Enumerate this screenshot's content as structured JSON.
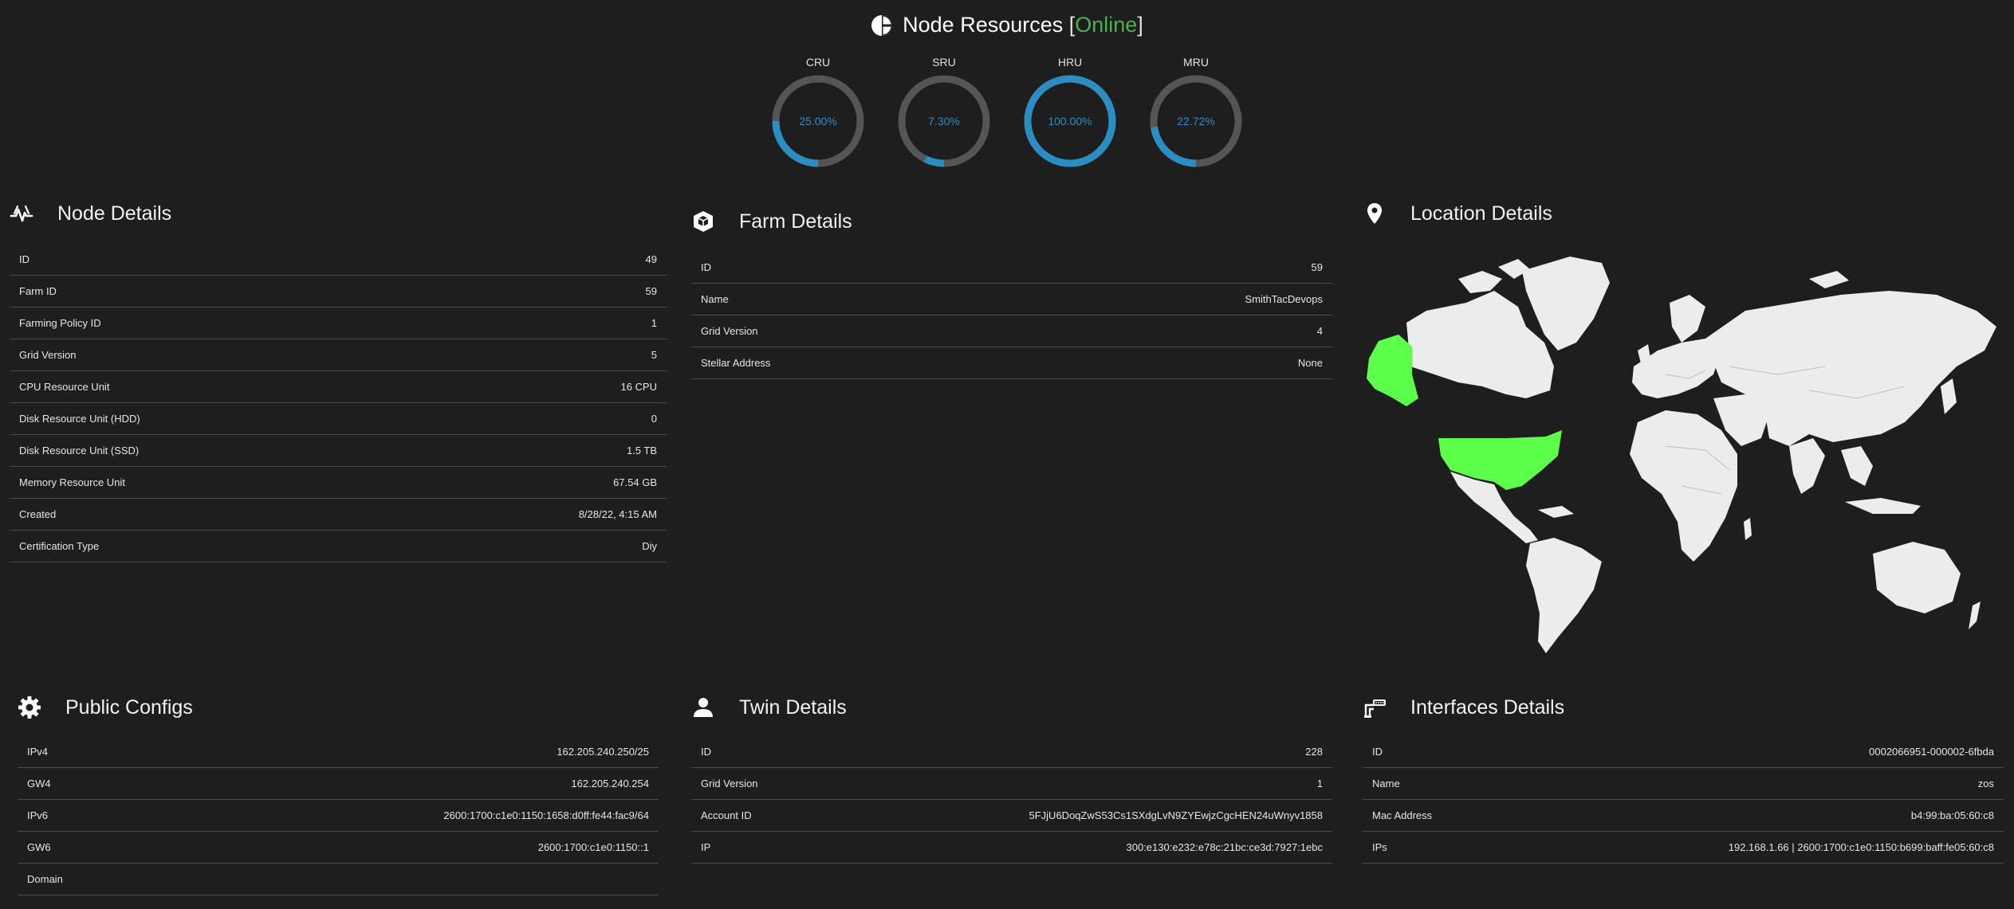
{
  "header": {
    "title": "Node Resources",
    "bracket_open": "[",
    "status": "Online",
    "bracket_close": "]"
  },
  "gauges": [
    {
      "label": "CRU",
      "text": "25.00%",
      "value": 25.0
    },
    {
      "label": "SRU",
      "text": "7.30%",
      "value": 7.3
    },
    {
      "label": "HRU",
      "text": "100.00%",
      "value": 100.0
    },
    {
      "label": "MRU",
      "text": "22.72%",
      "value": 22.72
    }
  ],
  "colors": {
    "accent": "#2b8ec2",
    "track": "#555555",
    "online": "#4caf50",
    "highlight_country": "#5cff4a",
    "land": "#ececec"
  },
  "node_details": {
    "title": "Node Details",
    "icon": "activity-icon",
    "rows": [
      {
        "label": "ID",
        "value": "49"
      },
      {
        "label": "Farm ID",
        "value": "59"
      },
      {
        "label": "Farming Policy ID",
        "value": "1"
      },
      {
        "label": "Grid Version",
        "value": "5"
      },
      {
        "label": "CPU Resource Unit",
        "value": "16 CPU"
      },
      {
        "label": "Disk Resource Unit (HDD)",
        "value": "0"
      },
      {
        "label": "Disk Resource Unit (SSD)",
        "value": "1.5 TB"
      },
      {
        "label": "Memory Resource Unit",
        "value": "67.54 GB"
      },
      {
        "label": "Created",
        "value": "8/28/22, 4:15 AM"
      },
      {
        "label": "Certification Type",
        "value": "Diy"
      }
    ]
  },
  "farm_details": {
    "title": "Farm Details",
    "icon": "cube-icon",
    "rows": [
      {
        "label": "ID",
        "value": "59"
      },
      {
        "label": "Name",
        "value": "SmithTacDevops"
      },
      {
        "label": "Grid Version",
        "value": "4"
      },
      {
        "label": "Stellar Address",
        "value": "None"
      }
    ]
  },
  "location_details": {
    "title": "Location Details",
    "icon": "map-pin-icon"
  },
  "public_configs": {
    "title": "Public Configs",
    "icon": "gear-icon",
    "rows": [
      {
        "label": "IPv4",
        "value": "162.205.240.250/25"
      },
      {
        "label": "GW4",
        "value": "162.205.240.254"
      },
      {
        "label": "IPv6",
        "value": "2600:1700:c1e0:1150:1658:d0ff:fe44:fac9/64"
      },
      {
        "label": "GW6",
        "value": "2600:1700:c1e0:1150::1"
      },
      {
        "label": "Domain",
        "value": ""
      }
    ]
  },
  "twin_details": {
    "title": "Twin Details",
    "icon": "user-icon",
    "rows": [
      {
        "label": "ID",
        "value": "228"
      },
      {
        "label": "Grid Version",
        "value": "1"
      },
      {
        "label": "Account ID",
        "value": "5FJjU6DoqZwS53Cs1SXdgLvN9ZYEwjzCgcHEN24uWnyv1858"
      },
      {
        "label": "IP",
        "value": "300:e130:e232:e78c:21bc:ce3d:7927:1ebc"
      }
    ]
  },
  "interfaces_details": {
    "title": "Interfaces Details",
    "icon": "network-interface-icon",
    "rows": [
      {
        "label": "ID",
        "value": "0002066951-000002-6fbda"
      },
      {
        "label": "Name",
        "value": "zos"
      },
      {
        "label": "Mac Address",
        "value": "b4:99:ba:05:60:c8"
      },
      {
        "label": "IPs",
        "value": "192.168.1.66 | 2600:1700:c1e0:1150:b699:baff:fe05:60:c8"
      }
    ]
  }
}
